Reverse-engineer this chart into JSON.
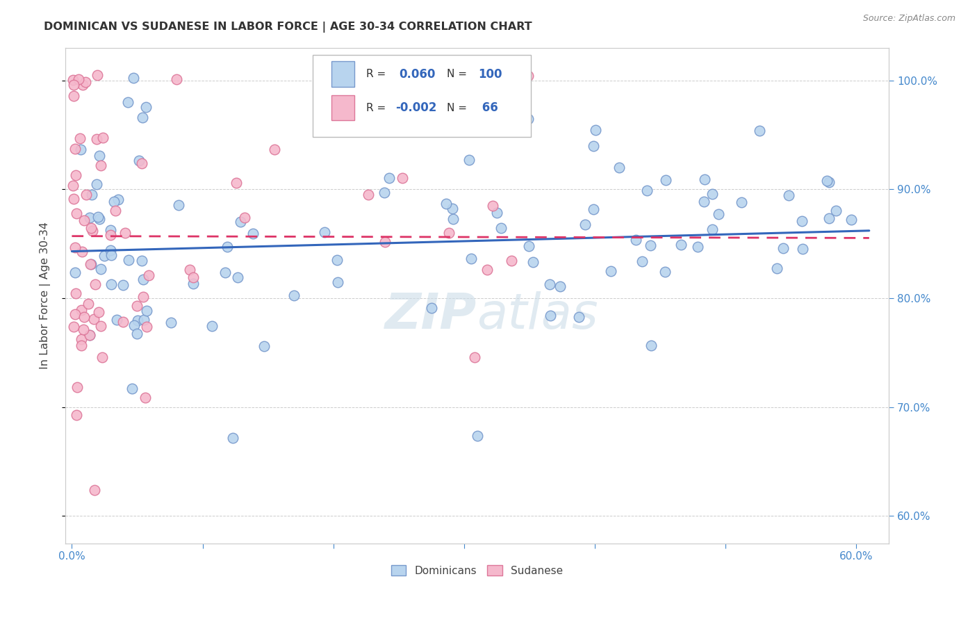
{
  "title": "DOMINICAN VS SUDANESE IN LABOR FORCE | AGE 30-34 CORRELATION CHART",
  "source": "Source: ZipAtlas.com",
  "ylabel": "In Labor Force | Age 30-34",
  "legend_entries": [
    "Dominicans",
    "Sudanese"
  ],
  "r_dominican": 0.06,
  "n_dominican": 100,
  "r_sudanese": -0.002,
  "n_sudanese": 66,
  "xlim": [
    -0.005,
    0.625
  ],
  "ylim": [
    0.575,
    1.03
  ],
  "xtick_positions": [
    0.0,
    0.1,
    0.2,
    0.3,
    0.4,
    0.5,
    0.6
  ],
  "xtick_labels": [
    "0.0%",
    "",
    "",
    "",
    "",
    "",
    "60.0%"
  ],
  "ytick_positions": [
    0.6,
    0.7,
    0.8,
    0.9,
    1.0
  ],
  "ytick_labels": [
    "60.0%",
    "70.0%",
    "80.0%",
    "90.0%",
    "100.0%"
  ],
  "background_color": "#ffffff",
  "grid_color": "#cccccc",
  "dot_color_dominican": "#b8d4ee",
  "dot_color_sudanese": "#f5b8cc",
  "dot_edge_dominican": "#7799cc",
  "dot_edge_sudanese": "#dd7799",
  "line_color_dominican": "#3366bb",
  "line_color_sudanese": "#dd3366",
  "text_color_blue": "#3366bb",
  "axis_color": "#4488cc",
  "label_color": "#444444",
  "title_color": "#333333",
  "watermark": "ZIPatlas",
  "watermark_color": "#ccdde8",
  "source_color": "#888888",
  "dom_line_x0": 0.0,
  "dom_line_y0": 0.843,
  "dom_line_x1": 0.61,
  "dom_line_y1": 0.862,
  "sud_line_x0": 0.0,
  "sud_line_y0": 0.857,
  "sud_line_x1": 0.35,
  "sud_line_y1": 0.856
}
